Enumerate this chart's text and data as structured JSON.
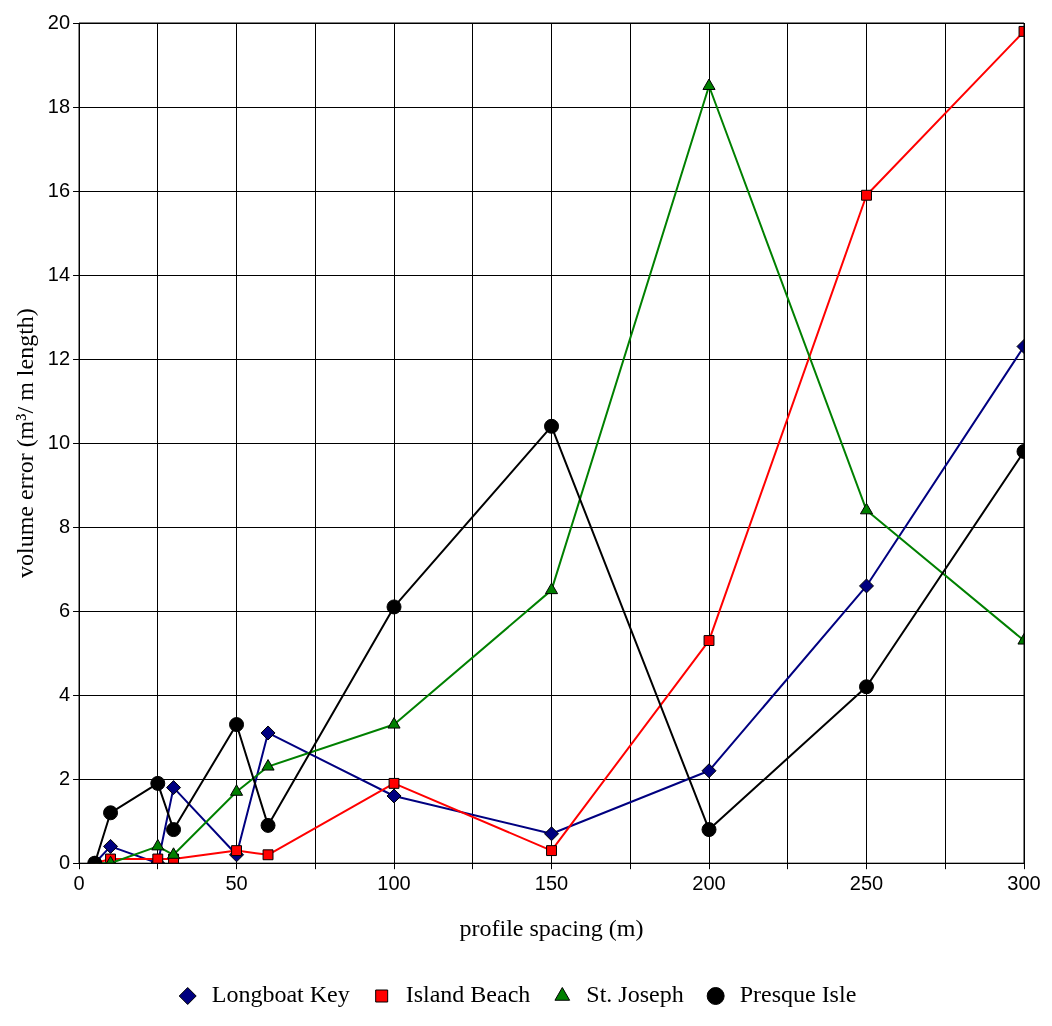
{
  "chart_data": {
    "type": "line",
    "xlabel": "profile spacing (m)",
    "ylabel": "volume error (m³/ m length)",
    "x": [
      5,
      10,
      25,
      30,
      50,
      60,
      100,
      150,
      200,
      250,
      300
    ],
    "series": [
      {
        "name": "Longboat Key",
        "color": "#000080",
        "marker": "diamond",
        "values": [
          0,
          0.4,
          0,
          1.8,
          0.2,
          3.1,
          1.6,
          0.7,
          2.2,
          6.6,
          12.3
        ]
      },
      {
        "name": "Island Beach",
        "color": "#ff0000",
        "marker": "square",
        "values": [
          0,
          0.1,
          0.1,
          0.1,
          0.3,
          0.2,
          1.9,
          0.3,
          5.3,
          15.9,
          19.8
        ]
      },
      {
        "name": "St. Joseph",
        "color": "#008000",
        "marker": "triangle",
        "values": [
          0,
          0,
          0.4,
          0.2,
          1.7,
          2.3,
          3.3,
          6.5,
          18.5,
          8.4,
          5.3
        ]
      },
      {
        "name": "Presque Isle",
        "color": "#000000",
        "marker": "circle",
        "values": [
          0,
          1.2,
          1.9,
          0.8,
          3.3,
          0.9,
          6.1,
          10.4,
          0.8,
          4.2,
          9.8
        ]
      }
    ],
    "xlim": [
      0,
      300
    ],
    "xticks": [
      0,
      {
        "value": 25,
        "label": null
      },
      50,
      {
        "value": 75,
        "label": null
      },
      100,
      {
        "value": 125,
        "label": null
      },
      150,
      {
        "value": 175,
        "label": null
      },
      200,
      {
        "value": 225,
        "label": null
      },
      250,
      {
        "value": 275,
        "label": null
      },
      300
    ],
    "ylim": [
      0,
      20
    ],
    "yticks": [
      0,
      2,
      4,
      6,
      8,
      10,
      12,
      14,
      16,
      18,
      20
    ],
    "grid": true,
    "legend": "bottom",
    "line_style": "solid"
  }
}
